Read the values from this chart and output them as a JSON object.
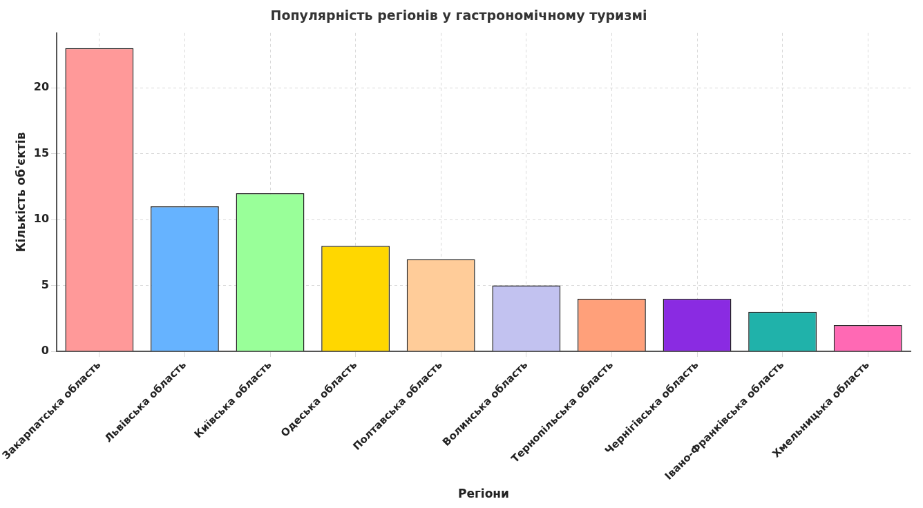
{
  "chart_data": {
    "type": "bar",
    "title": "Популярність регіонів у гастрономічному туризмі",
    "xlabel": "Регіони",
    "ylabel": "Кількість об'єктів",
    "categories": [
      "Закарпатська область",
      "Львівська область",
      "Київська область",
      "Одеська область",
      "Полтавська область",
      "Волинська область",
      "Тернопільська область",
      "Чернігівська область",
      "Івано-Франківська область",
      "Хмельницька область"
    ],
    "values": [
      23,
      11,
      12,
      8,
      7,
      5,
      4,
      4,
      3,
      2
    ],
    "colors": [
      "#ff9999",
      "#66b3ff",
      "#99ff99",
      "#ffd700",
      "#ffcc99",
      "#c2c2f0",
      "#ffa07a",
      "#8a2be2",
      "#20b2aa",
      "#ff69b4"
    ],
    "ylim": [
      0,
      24.15
    ],
    "yticks": [
      0,
      5,
      10,
      15,
      20
    ],
    "grid": true
  }
}
